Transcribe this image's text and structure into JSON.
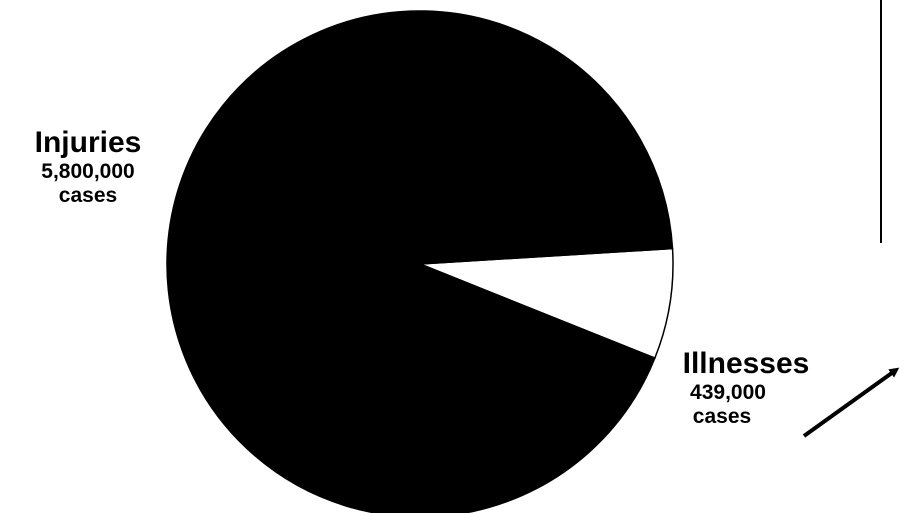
{
  "chart_data": {
    "type": "pie",
    "title": "",
    "slices": [
      {
        "name": "Injuries",
        "value": 5800000,
        "value_label": "5,800,000",
        "unit": "cases",
        "color": "#000000"
      },
      {
        "name": "Illnesses",
        "value": 439000,
        "value_label": "439,000",
        "unit": "cases",
        "color": "#ffffff"
      }
    ],
    "legend": "none",
    "annotations": [
      "arrow pointing up-right from Illnesses label"
    ]
  }
}
